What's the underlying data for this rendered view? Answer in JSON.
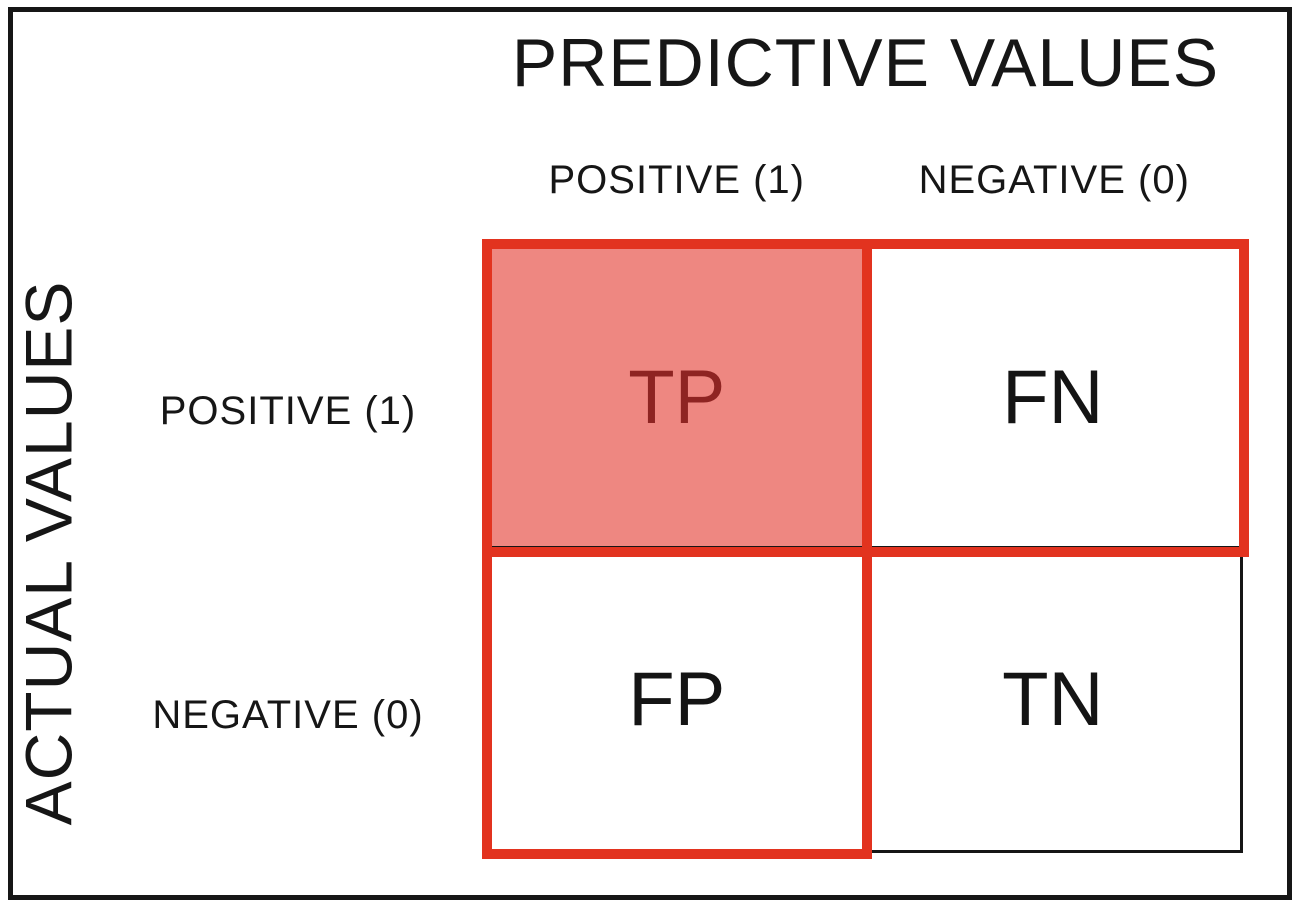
{
  "title": "PREDICTIVE VALUES",
  "y_axis_label": "ACTUAL VALUES",
  "column_headers": [
    "POSITIVE (1)",
    "NEGATIVE (0)"
  ],
  "row_labels": [
    "POSITIVE (1)",
    "NEGATIVE (0)"
  ],
  "cells": {
    "tp": "TP",
    "fn": "FN",
    "fp": "FP",
    "tn": "TN"
  },
  "colors": {
    "accent_red": "#E2331F",
    "highlight_fill": "#EE8781",
    "highlight_text": "#8E2422",
    "line_black": "#161616"
  }
}
